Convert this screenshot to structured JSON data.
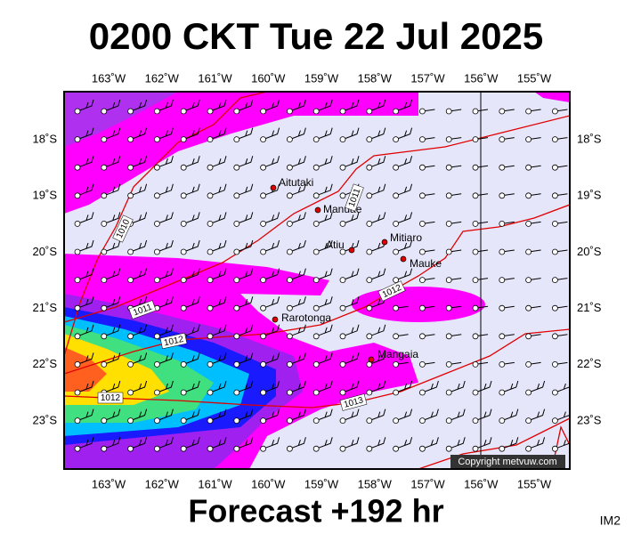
{
  "header": {
    "title": "0200 CKT Tue 22 Jul 2025"
  },
  "footer": {
    "forecast": "Forecast +192 hr",
    "code": "IM2"
  },
  "map": {
    "longitude_labels": [
      "163˚W",
      "162˚W",
      "161˚W",
      "160˚W",
      "159˚W",
      "158˚W",
      "157˚W",
      "156˚W",
      "155˚W"
    ],
    "latitude_labels": [
      "18˚S",
      "19˚S",
      "20˚S",
      "21˚S",
      "22˚S",
      "23˚S"
    ],
    "places": [
      "Aitutaki",
      "Manuae",
      "Atiu",
      "Mitiaro",
      "Mauke",
      "Rarotonga",
      "Mangaia"
    ],
    "isobar_labels": [
      "1010",
      "1011",
      "1011",
      "1012",
      "1012",
      "1012",
      "1013"
    ],
    "copyright": "Copyright metvuw.com"
  }
}
